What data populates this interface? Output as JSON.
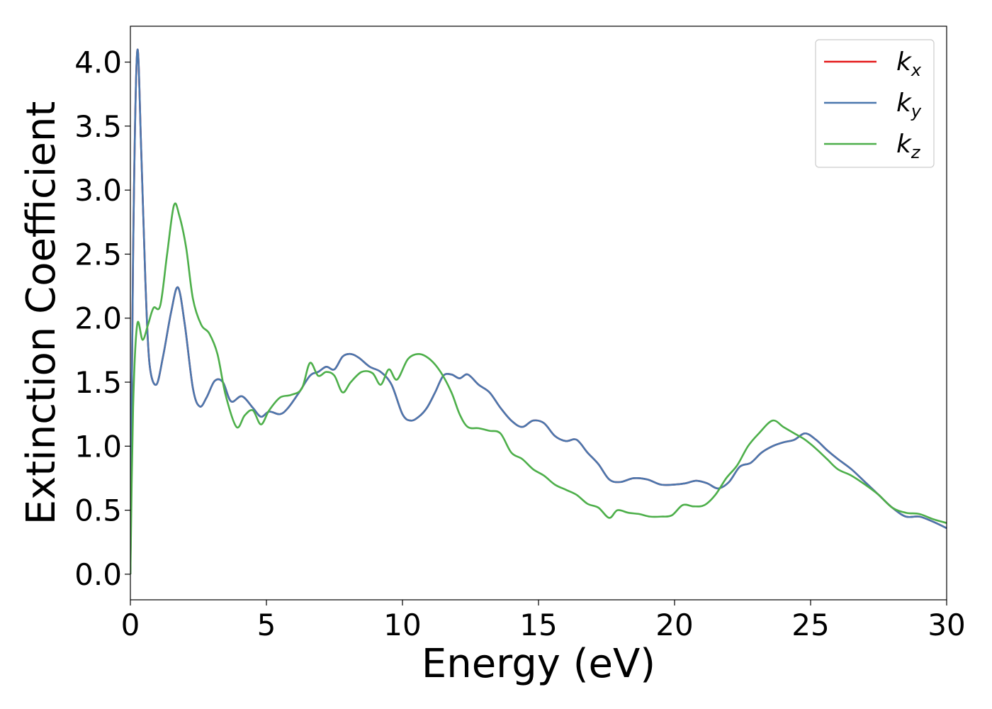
{
  "chart_data": {
    "type": "line",
    "xlabel": "Energy (eV)",
    "ylabel": "Extinction Coefficient",
    "xlim": [
      0,
      30
    ],
    "ylim": [
      -0.2,
      4.28
    ],
    "xticks": [
      0,
      5,
      10,
      15,
      20,
      25,
      30
    ],
    "yticks": [
      0.0,
      0.5,
      1.0,
      1.5,
      2.0,
      2.5,
      3.0,
      3.5,
      4.0
    ],
    "xtick_labels": [
      "0",
      "5",
      "10",
      "15",
      "20",
      "25",
      "30"
    ],
    "ytick_labels": [
      "0.0",
      "0.5",
      "1.0",
      "1.5",
      "2.0",
      "2.5",
      "3.0",
      "3.5",
      "4.0"
    ],
    "grid": false,
    "legend_position": "top-right",
    "series": [
      {
        "name": "k",
        "sub": "x",
        "color": "#e41a1c",
        "x": [
          0,
          0.1,
          0.25,
          0.4,
          0.55,
          0.7,
          0.95,
          1.2,
          1.5,
          1.75,
          2.0,
          2.3,
          2.55,
          2.8,
          3.1,
          3.4,
          3.7,
          4.1,
          4.5,
          4.8,
          5.1,
          5.5,
          5.8,
          6.2,
          6.6,
          6.9,
          7.2,
          7.5,
          7.8,
          8.1,
          8.4,
          8.8,
          9.2,
          9.6,
          10.0,
          10.3,
          10.6,
          10.9,
          11.2,
          11.5,
          11.8,
          12.1,
          12.4,
          12.8,
          13.2,
          13.6,
          14.0,
          14.4,
          14.8,
          15.2,
          15.6,
          16.0,
          16.4,
          16.8,
          17.2,
          17.6,
          18.0,
          18.5,
          19.0,
          19.5,
          20.0,
          20.4,
          20.8,
          21.2,
          21.6,
          22.0,
          22.4,
          22.8,
          23.2,
          23.6,
          24.0,
          24.4,
          24.8,
          25.2,
          25.6,
          26.0,
          26.5,
          27.0,
          27.5,
          28.0,
          28.5,
          29.0,
          29.5,
          30.0
        ],
        "values": [
          0.0,
          2.5,
          4.08,
          3.3,
          2.3,
          1.65,
          1.48,
          1.7,
          2.05,
          2.24,
          1.95,
          1.45,
          1.31,
          1.38,
          1.51,
          1.5,
          1.35,
          1.39,
          1.3,
          1.23,
          1.27,
          1.25,
          1.3,
          1.42,
          1.55,
          1.58,
          1.62,
          1.6,
          1.7,
          1.72,
          1.69,
          1.62,
          1.58,
          1.48,
          1.25,
          1.2,
          1.23,
          1.3,
          1.42,
          1.55,
          1.56,
          1.53,
          1.56,
          1.48,
          1.42,
          1.3,
          1.2,
          1.15,
          1.2,
          1.18,
          1.08,
          1.04,
          1.05,
          0.95,
          0.86,
          0.74,
          0.72,
          0.75,
          0.74,
          0.7,
          0.7,
          0.71,
          0.73,
          0.71,
          0.67,
          0.72,
          0.84,
          0.87,
          0.95,
          1.0,
          1.03,
          1.05,
          1.1,
          1.05,
          0.97,
          0.9,
          0.82,
          0.72,
          0.62,
          0.52,
          0.45,
          0.45,
          0.41,
          0.36
        ]
      },
      {
        "name": "k",
        "sub": "y",
        "color": "#4a77ae",
        "x": [
          0,
          0.1,
          0.25,
          0.4,
          0.55,
          0.7,
          0.95,
          1.2,
          1.5,
          1.75,
          2.0,
          2.3,
          2.55,
          2.8,
          3.1,
          3.4,
          3.7,
          4.1,
          4.5,
          4.8,
          5.1,
          5.5,
          5.8,
          6.2,
          6.6,
          6.9,
          7.2,
          7.5,
          7.8,
          8.1,
          8.4,
          8.8,
          9.2,
          9.6,
          10.0,
          10.3,
          10.6,
          10.9,
          11.2,
          11.5,
          11.8,
          12.1,
          12.4,
          12.8,
          13.2,
          13.6,
          14.0,
          14.4,
          14.8,
          15.2,
          15.6,
          16.0,
          16.4,
          16.8,
          17.2,
          17.6,
          18.0,
          18.5,
          19.0,
          19.5,
          20.0,
          20.4,
          20.8,
          21.2,
          21.6,
          22.0,
          22.4,
          22.8,
          23.2,
          23.6,
          24.0,
          24.4,
          24.8,
          25.2,
          25.6,
          26.0,
          26.5,
          27.0,
          27.5,
          28.0,
          28.5,
          29.0,
          29.5,
          30.0
        ],
        "values": [
          0.0,
          2.5,
          4.08,
          3.3,
          2.3,
          1.65,
          1.48,
          1.7,
          2.05,
          2.24,
          1.95,
          1.45,
          1.31,
          1.38,
          1.51,
          1.5,
          1.35,
          1.39,
          1.3,
          1.23,
          1.27,
          1.25,
          1.3,
          1.42,
          1.55,
          1.58,
          1.62,
          1.6,
          1.7,
          1.72,
          1.69,
          1.62,
          1.58,
          1.48,
          1.25,
          1.2,
          1.23,
          1.3,
          1.42,
          1.55,
          1.56,
          1.53,
          1.56,
          1.48,
          1.42,
          1.3,
          1.2,
          1.15,
          1.2,
          1.18,
          1.08,
          1.04,
          1.05,
          0.95,
          0.86,
          0.74,
          0.72,
          0.75,
          0.74,
          0.7,
          0.7,
          0.71,
          0.73,
          0.71,
          0.67,
          0.72,
          0.84,
          0.87,
          0.95,
          1.0,
          1.03,
          1.05,
          1.1,
          1.05,
          0.97,
          0.9,
          0.82,
          0.72,
          0.62,
          0.52,
          0.45,
          0.45,
          0.41,
          0.36
        ]
      },
      {
        "name": "k",
        "sub": "z",
        "color": "#4daf4a",
        "x": [
          0,
          0.1,
          0.25,
          0.45,
          0.65,
          0.85,
          1.1,
          1.35,
          1.6,
          1.8,
          2.05,
          2.3,
          2.6,
          2.9,
          3.2,
          3.5,
          3.9,
          4.2,
          4.5,
          4.8,
          5.1,
          5.5,
          5.9,
          6.3,
          6.6,
          6.9,
          7.2,
          7.5,
          7.8,
          8.1,
          8.5,
          8.9,
          9.2,
          9.5,
          9.8,
          10.2,
          10.6,
          11.0,
          11.4,
          11.8,
          12.1,
          12.4,
          12.8,
          13.2,
          13.6,
          14.0,
          14.4,
          14.8,
          15.2,
          15.6,
          16.0,
          16.4,
          16.8,
          17.2,
          17.6,
          17.9,
          18.3,
          18.7,
          19.1,
          19.5,
          19.9,
          20.3,
          20.7,
          21.1,
          21.5,
          21.9,
          22.3,
          22.7,
          23.1,
          23.6,
          24.0,
          24.4,
          24.8,
          25.2,
          25.6,
          26.0,
          26.5,
          27.0,
          27.5,
          28.0,
          28.5,
          29.0,
          29.5,
          30.0
        ],
        "values": [
          0.0,
          1.3,
          1.95,
          1.83,
          1.95,
          2.08,
          2.1,
          2.5,
          2.88,
          2.8,
          2.55,
          2.15,
          1.95,
          1.88,
          1.72,
          1.4,
          1.15,
          1.24,
          1.28,
          1.17,
          1.28,
          1.38,
          1.4,
          1.45,
          1.65,
          1.55,
          1.58,
          1.55,
          1.42,
          1.5,
          1.58,
          1.57,
          1.48,
          1.6,
          1.52,
          1.68,
          1.72,
          1.68,
          1.58,
          1.42,
          1.25,
          1.15,
          1.14,
          1.12,
          1.1,
          0.95,
          0.9,
          0.82,
          0.77,
          0.7,
          0.66,
          0.62,
          0.55,
          0.52,
          0.44,
          0.5,
          0.48,
          0.47,
          0.45,
          0.45,
          0.46,
          0.54,
          0.53,
          0.54,
          0.62,
          0.75,
          0.85,
          1.0,
          1.1,
          1.2,
          1.15,
          1.1,
          1.05,
          0.98,
          0.9,
          0.82,
          0.77,
          0.7,
          0.62,
          0.52,
          0.48,
          0.47,
          0.43,
          0.4
        ]
      }
    ]
  }
}
